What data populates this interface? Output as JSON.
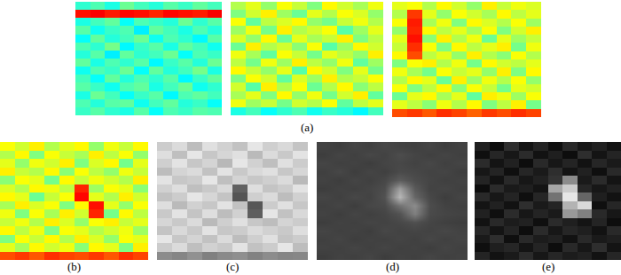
{
  "chart_data": [
    {
      "type": "heatmap",
      "color": "jet",
      "tick_labels": false,
      "zlim": [
        0,
        1
      ],
      "z": [
        [
          0.42,
          0.45,
          0.4,
          0.48,
          0.44,
          0.41,
          0.46,
          0.43,
          0.47,
          0.44
        ],
        [
          0.86,
          0.88,
          0.85,
          0.87,
          0.86,
          0.84,
          0.87,
          0.86,
          0.85,
          0.88
        ],
        [
          0.4,
          0.44,
          0.47,
          0.38,
          0.45,
          0.43,
          0.41,
          0.48,
          0.42,
          0.46
        ],
        [
          0.46,
          0.39,
          0.43,
          0.45,
          0.36,
          0.47,
          0.44,
          0.4,
          0.45,
          0.41
        ],
        [
          0.38,
          0.47,
          0.41,
          0.44,
          0.48,
          0.39,
          0.45,
          0.42,
          0.37,
          0.46
        ],
        [
          0.45,
          0.42,
          0.49,
          0.37,
          0.43,
          0.46,
          0.4,
          0.47,
          0.44,
          0.39
        ],
        [
          0.41,
          0.46,
          0.36,
          0.47,
          0.42,
          0.44,
          0.48,
          0.38,
          0.45,
          0.43
        ],
        [
          0.47,
          0.4,
          0.45,
          0.42,
          0.46,
          0.37,
          0.43,
          0.46,
          0.41,
          0.48
        ],
        [
          0.39,
          0.45,
          0.43,
          0.48,
          0.38,
          0.47,
          0.41,
          0.44,
          0.49,
          0.4
        ],
        [
          0.44,
          0.38,
          0.47,
          0.41,
          0.45,
          0.42,
          0.46,
          0.37,
          0.43,
          0.47
        ],
        [
          0.46,
          0.43,
          0.39,
          0.45,
          0.47,
          0.4,
          0.44,
          0.48,
          0.39,
          0.42
        ],
        [
          0.4,
          0.48,
          0.44,
          0.38,
          0.43,
          0.46,
          0.37,
          0.45,
          0.47,
          0.44
        ],
        [
          0.45,
          0.41,
          0.46,
          0.47,
          0.39,
          0.44,
          0.47,
          0.41,
          0.43,
          0.38
        ],
        [
          0.43,
          0.46,
          0.42,
          0.4,
          0.46,
          0.38,
          0.45,
          0.43,
          0.46,
          0.45
        ]
      ]
    },
    {
      "type": "heatmap",
      "title": "(a)",
      "color": "jet",
      "tick_labels": false,
      "zlim": [
        0,
        1
      ],
      "z": [
        [
          0.55,
          0.6,
          0.52,
          0.62,
          0.57,
          0.5,
          0.63,
          0.58,
          0.54,
          0.61
        ],
        [
          0.5,
          0.58,
          0.64,
          0.53,
          0.48,
          0.6,
          0.55,
          0.62,
          0.59,
          0.52
        ],
        [
          0.62,
          0.47,
          0.56,
          0.59,
          0.63,
          0.52,
          0.49,
          0.57,
          0.61,
          0.55
        ],
        [
          0.53,
          0.61,
          0.49,
          0.64,
          0.55,
          0.58,
          0.62,
          0.46,
          0.53,
          0.6
        ],
        [
          0.59,
          0.52,
          0.63,
          0.48,
          0.6,
          0.54,
          0.57,
          0.64,
          0.5,
          0.56
        ],
        [
          0.48,
          0.64,
          0.55,
          0.58,
          0.51,
          0.62,
          0.46,
          0.53,
          0.63,
          0.58
        ],
        [
          0.61,
          0.54,
          0.47,
          0.62,
          0.57,
          0.49,
          0.6,
          0.56,
          0.52,
          0.64
        ],
        [
          0.56,
          0.49,
          0.61,
          0.53,
          0.64,
          0.56,
          0.52,
          0.61,
          0.47,
          0.53
        ],
        [
          0.63,
          0.57,
          0.52,
          0.6,
          0.46,
          0.63,
          0.58,
          0.5,
          0.6,
          0.49
        ],
        [
          0.5,
          0.62,
          0.58,
          0.47,
          0.59,
          0.53,
          0.64,
          0.55,
          0.57,
          0.62
        ],
        [
          0.58,
          0.46,
          0.64,
          0.55,
          0.62,
          0.48,
          0.55,
          0.63,
          0.51,
          0.56
        ],
        [
          0.54,
          0.6,
          0.5,
          0.63,
          0.52,
          0.61,
          0.49,
          0.58,
          0.64,
          0.47
        ],
        [
          0.61,
          0.53,
          0.57,
          0.49,
          0.58,
          0.55,
          0.62,
          0.47,
          0.56,
          0.6
        ],
        [
          0.4,
          0.44,
          0.38,
          0.42,
          0.45,
          0.39,
          0.43,
          0.41,
          0.37,
          0.44
        ]
      ]
    },
    {
      "type": "heatmap",
      "color": "jet",
      "tick_labels": false,
      "zlim": [
        0,
        1
      ],
      "z": [
        [
          0.6,
          0.62,
          0.55,
          0.63,
          0.58,
          0.52,
          0.64,
          0.57,
          0.61,
          0.59
        ],
        [
          0.55,
          0.82,
          0.6,
          0.52,
          0.62,
          0.58,
          0.54,
          0.63,
          0.56,
          0.6
        ],
        [
          0.62,
          0.85,
          0.54,
          0.61,
          0.5,
          0.63,
          0.59,
          0.55,
          0.62,
          0.53
        ],
        [
          0.52,
          0.84,
          0.63,
          0.56,
          0.6,
          0.54,
          0.62,
          0.5,
          0.58,
          0.64
        ],
        [
          0.6,
          0.86,
          0.51,
          0.64,
          0.55,
          0.61,
          0.48,
          0.6,
          0.53,
          0.57
        ],
        [
          0.57,
          0.83,
          0.62,
          0.5,
          0.63,
          0.56,
          0.6,
          0.64,
          0.49,
          0.61
        ],
        [
          0.63,
          0.8,
          0.56,
          0.6,
          0.52,
          0.64,
          0.55,
          0.51,
          0.62,
          0.55
        ],
        [
          0.5,
          0.62,
          0.64,
          0.55,
          0.61,
          0.49,
          0.63,
          0.58,
          0.56,
          0.6
        ],
        [
          0.61,
          0.54,
          0.49,
          0.62,
          0.57,
          0.6,
          0.52,
          0.64,
          0.5,
          0.63
        ],
        [
          0.55,
          0.63,
          0.6,
          0.48,
          0.64,
          0.53,
          0.61,
          0.55,
          0.62,
          0.52
        ],
        [
          0.62,
          0.5,
          0.56,
          0.63,
          0.51,
          0.62,
          0.57,
          0.49,
          0.6,
          0.58
        ],
        [
          0.48,
          0.6,
          0.63,
          0.54,
          0.6,
          0.47,
          0.64,
          0.61,
          0.53,
          0.62
        ],
        [
          0.6,
          0.56,
          0.51,
          0.61,
          0.55,
          0.63,
          0.5,
          0.56,
          0.64,
          0.49
        ],
        [
          0.8,
          0.82,
          0.79,
          0.83,
          0.81,
          0.78,
          0.82,
          0.8,
          0.83,
          0.81
        ]
      ]
    },
    {
      "type": "heatmap",
      "title": "(b)",
      "color": "jet",
      "tick_labels": false,
      "zlim": [
        0,
        1
      ],
      "z": [
        [
          0.62,
          0.58,
          0.64,
          0.55,
          0.6,
          0.63,
          0.52,
          0.61,
          0.57,
          0.63
        ],
        [
          0.55,
          0.63,
          0.5,
          0.62,
          0.57,
          0.54,
          0.64,
          0.56,
          0.62,
          0.52
        ],
        [
          0.6,
          0.52,
          0.61,
          0.58,
          0.64,
          0.5,
          0.59,
          0.63,
          0.49,
          0.6
        ],
        [
          0.64,
          0.57,
          0.55,
          0.63,
          0.51,
          0.62,
          0.56,
          0.52,
          0.61,
          0.57
        ],
        [
          0.51,
          0.62,
          0.6,
          0.49,
          0.63,
          0.57,
          0.61,
          0.58,
          0.55,
          0.64
        ],
        [
          0.59,
          0.55,
          0.63,
          0.61,
          0.56,
          0.84,
          0.53,
          0.62,
          0.6,
          0.51
        ],
        [
          0.63,
          0.6,
          0.48,
          0.57,
          0.62,
          0.87,
          0.6,
          0.55,
          0.64,
          0.58
        ],
        [
          0.54,
          0.64,
          0.59,
          0.62,
          0.5,
          0.63,
          0.86,
          0.6,
          0.52,
          0.62
        ],
        [
          0.61,
          0.5,
          0.62,
          0.54,
          0.64,
          0.58,
          0.84,
          0.49,
          0.63,
          0.56
        ],
        [
          0.57,
          0.61,
          0.55,
          0.64,
          0.59,
          0.52,
          0.62,
          0.64,
          0.57,
          0.6
        ],
        [
          0.63,
          0.56,
          0.61,
          0.5,
          0.62,
          0.6,
          0.55,
          0.58,
          0.61,
          0.53
        ],
        [
          0.5,
          0.62,
          0.57,
          0.63,
          0.55,
          0.64,
          0.59,
          0.52,
          0.62,
          0.6
        ],
        [
          0.6,
          0.54,
          0.63,
          0.58,
          0.61,
          0.51,
          0.63,
          0.6,
          0.5,
          0.64
        ],
        [
          0.8,
          0.82,
          0.79,
          0.83,
          0.81,
          0.8,
          0.82,
          0.79,
          0.83,
          0.81
        ]
      ]
    },
    {
      "type": "heatmap",
      "title": "(c)",
      "color": "gray",
      "tick_labels": false,
      "zlim": [
        0,
        1
      ],
      "z": [
        [
          0.8,
          0.86,
          0.74,
          0.88,
          0.82,
          0.76,
          0.9,
          0.81,
          0.85,
          0.77
        ],
        [
          0.87,
          0.75,
          0.9,
          0.78,
          0.84,
          0.88,
          0.73,
          0.86,
          0.79,
          0.89
        ],
        [
          0.81,
          0.89,
          0.78,
          0.83,
          0.72,
          0.9,
          0.82,
          0.75,
          0.88,
          0.8
        ],
        [
          0.74,
          0.83,
          0.86,
          0.76,
          0.89,
          0.79,
          0.85,
          0.88,
          0.78,
          0.84
        ],
        [
          0.89,
          0.78,
          0.8,
          0.9,
          0.75,
          0.83,
          0.78,
          0.81,
          0.86,
          0.73
        ],
        [
          0.82,
          0.87,
          0.75,
          0.79,
          0.85,
          0.38,
          0.87,
          0.77,
          0.8,
          0.89
        ],
        [
          0.76,
          0.8,
          0.9,
          0.84,
          0.77,
          0.33,
          0.81,
          0.86,
          0.74,
          0.82
        ],
        [
          0.87,
          0.73,
          0.82,
          0.78,
          0.89,
          0.76,
          0.34,
          0.8,
          0.88,
          0.78
        ],
        [
          0.79,
          0.89,
          0.77,
          0.87,
          0.74,
          0.82,
          0.37,
          0.9,
          0.76,
          0.85
        ],
        [
          0.84,
          0.79,
          0.86,
          0.73,
          0.81,
          0.88,
          0.78,
          0.74,
          0.83,
          0.8
        ],
        [
          0.77,
          0.85,
          0.79,
          0.89,
          0.78,
          0.8,
          0.86,
          0.82,
          0.79,
          0.87
        ],
        [
          0.9,
          0.78,
          0.83,
          0.76,
          0.86,
          0.74,
          0.81,
          0.88,
          0.77,
          0.8
        ],
        [
          0.8,
          0.86,
          0.75,
          0.82,
          0.79,
          0.89,
          0.76,
          0.8,
          0.9,
          0.74
        ],
        [
          0.55,
          0.52,
          0.57,
          0.5,
          0.54,
          0.56,
          0.51,
          0.55,
          0.52,
          0.53
        ]
      ]
    },
    {
      "type": "heatmap",
      "title": "(d)",
      "color": "gray",
      "tick_labels": false,
      "zlim": [
        0,
        1
      ],
      "z": [
        [
          0.26,
          0.24,
          0.27,
          0.25,
          0.28,
          0.26,
          0.25,
          0.27,
          0.24,
          0.26
        ],
        [
          0.24,
          0.27,
          0.25,
          0.28,
          0.26,
          0.3,
          0.27,
          0.25,
          0.27,
          0.25
        ],
        [
          0.27,
          0.25,
          0.26,
          0.24,
          0.27,
          0.28,
          0.26,
          0.28,
          0.25,
          0.27
        ],
        [
          0.25,
          0.28,
          0.24,
          0.27,
          0.25,
          0.29,
          0.28,
          0.26,
          0.27,
          0.24
        ],
        [
          0.26,
          0.24,
          0.27,
          0.25,
          0.28,
          0.36,
          0.3,
          0.27,
          0.25,
          0.26
        ],
        [
          0.24,
          0.26,
          0.25,
          0.27,
          0.3,
          0.62,
          0.35,
          0.26,
          0.27,
          0.25
        ],
        [
          0.27,
          0.25,
          0.28,
          0.26,
          0.32,
          0.72,
          0.4,
          0.28,
          0.24,
          0.27
        ],
        [
          0.25,
          0.27,
          0.24,
          0.28,
          0.29,
          0.45,
          0.55,
          0.3,
          0.26,
          0.25
        ],
        [
          0.26,
          0.24,
          0.27,
          0.25,
          0.27,
          0.32,
          0.5,
          0.29,
          0.27,
          0.26
        ],
        [
          0.24,
          0.26,
          0.25,
          0.27,
          0.26,
          0.28,
          0.31,
          0.27,
          0.25,
          0.24
        ],
        [
          0.27,
          0.25,
          0.26,
          0.24,
          0.28,
          0.26,
          0.27,
          0.26,
          0.28,
          0.26
        ],
        [
          0.25,
          0.27,
          0.24,
          0.26,
          0.25,
          0.27,
          0.25,
          0.28,
          0.25,
          0.27
        ],
        [
          0.26,
          0.25,
          0.27,
          0.25,
          0.27,
          0.25,
          0.26,
          0.24,
          0.27,
          0.25
        ],
        [
          0.24,
          0.26,
          0.25,
          0.27,
          0.24,
          0.26,
          0.25,
          0.27,
          0.25,
          0.26
        ]
      ]
    },
    {
      "type": "heatmap",
      "title": "(e)",
      "color": "gray",
      "tick_labels": false,
      "zlim": [
        0,
        1
      ],
      "z": [
        [
          0.12,
          0.05,
          0.18,
          0.08,
          0.14,
          0.06,
          0.16,
          0.09,
          0.13,
          0.07
        ],
        [
          0.06,
          0.15,
          0.09,
          0.17,
          0.07,
          0.12,
          0.05,
          0.18,
          0.08,
          0.14
        ],
        [
          0.17,
          0.08,
          0.13,
          0.05,
          0.16,
          0.09,
          0.14,
          0.07,
          0.15,
          0.1
        ],
        [
          0.09,
          0.14,
          0.06,
          0.15,
          0.1,
          0.18,
          0.08,
          0.13,
          0.06,
          0.16
        ],
        [
          0.14,
          0.07,
          0.16,
          0.09,
          0.13,
          0.2,
          0.55,
          0.1,
          0.17,
          0.08
        ],
        [
          0.05,
          0.17,
          0.1,
          0.12,
          0.08,
          0.65,
          0.8,
          0.15,
          0.09,
          0.13
        ],
        [
          0.16,
          0.09,
          0.14,
          0.06,
          0.15,
          0.45,
          0.9,
          0.4,
          0.12,
          0.07
        ],
        [
          0.08,
          0.13,
          0.07,
          0.18,
          0.1,
          0.14,
          0.7,
          0.85,
          0.06,
          0.15
        ],
        [
          0.13,
          0.06,
          0.17,
          0.09,
          0.14,
          0.1,
          0.6,
          0.5,
          0.16,
          0.09
        ],
        [
          0.07,
          0.16,
          0.11,
          0.13,
          0.06,
          0.17,
          0.12,
          0.08,
          0.14,
          0.05
        ],
        [
          0.15,
          0.08,
          0.14,
          0.05,
          0.17,
          0.09,
          0.15,
          0.12,
          0.07,
          0.16
        ],
        [
          0.1,
          0.18,
          0.06,
          0.16,
          0.11,
          0.13,
          0.07,
          0.16,
          0.1,
          0.12
        ],
        [
          0.06,
          0.12,
          0.15,
          0.08,
          0.14,
          0.05,
          0.16,
          0.09,
          0.18,
          0.08
        ],
        [
          0.14,
          0.07,
          0.1,
          0.17,
          0.09,
          0.15,
          0.11,
          0.13,
          0.07,
          0.15
        ]
      ]
    }
  ]
}
